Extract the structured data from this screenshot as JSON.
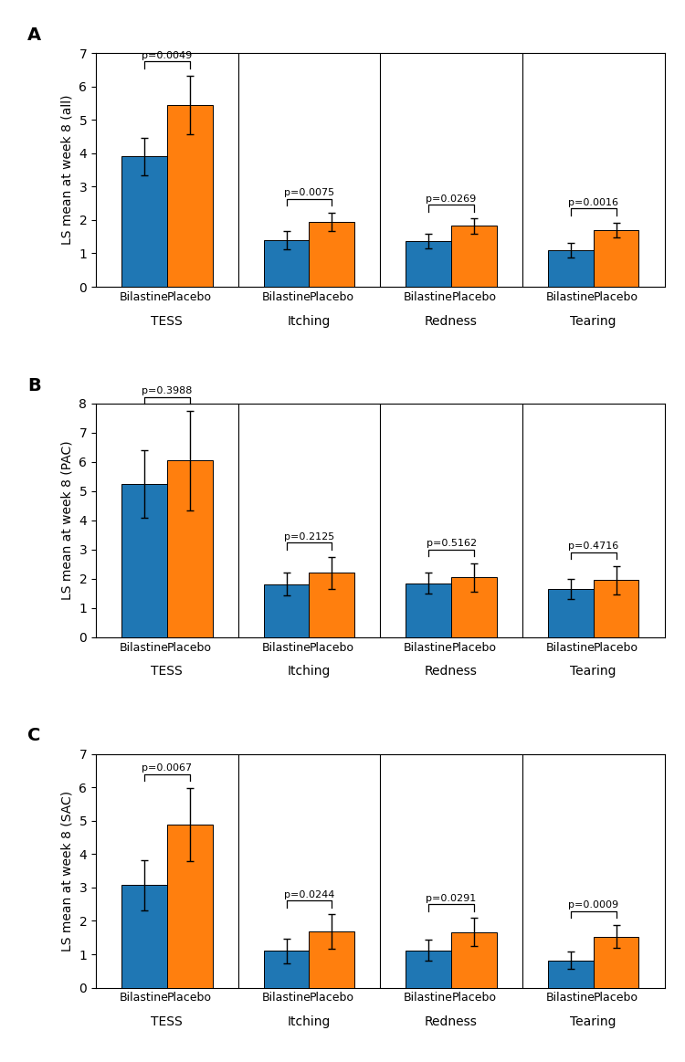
{
  "chart_data": [
    {
      "type": "bar",
      "title": "A",
      "y_label": "LS mean at week 8 (all)",
      "categories": [
        "TESS",
        "Itching",
        "Redness",
        "Tearing"
      ],
      "series": [
        {
          "name": "Bilastine",
          "values": [
            3.9,
            1.4,
            1.38,
            1.1
          ],
          "errors": [
            0.55,
            0.27,
            0.22,
            0.22
          ]
        },
        {
          "name": "Placebo",
          "values": [
            5.45,
            1.95,
            1.82,
            1.7
          ],
          "errors": [
            0.88,
            0.27,
            0.22,
            0.22
          ]
        }
      ],
      "annotations": [
        "p=0.0049",
        "p=0.0075",
        "p=0.0269",
        "p=0.0016"
      ],
      "ylim": [
        0,
        7
      ],
      "yticks": [
        0,
        1,
        2,
        3,
        4,
        5,
        6,
        7
      ]
    },
    {
      "type": "bar",
      "title": "B",
      "y_label": "LS mean at week 8 (PAC)",
      "categories": [
        "TESS",
        "Itching",
        "Redness",
        "Tearing"
      ],
      "series": [
        {
          "name": "Bilastine",
          "values": [
            5.25,
            1.82,
            1.85,
            1.65
          ],
          "errors": [
            1.15,
            0.4,
            0.35,
            0.35
          ]
        },
        {
          "name": "Placebo",
          "values": [
            6.05,
            2.2,
            2.05,
            1.95
          ],
          "errors": [
            1.7,
            0.55,
            0.48,
            0.48
          ]
        }
      ],
      "annotations": [
        "p=0.3988",
        "p=0.2125",
        "p=0.5162",
        "p=0.4716"
      ],
      "ylim": [
        0,
        8
      ],
      "yticks": [
        0,
        1,
        2,
        3,
        4,
        5,
        6,
        7,
        8
      ]
    },
    {
      "type": "bar",
      "title": "C",
      "y_label": "LS mean at week 8 (SAC)",
      "categories": [
        "TESS",
        "Itching",
        "Redness",
        "Tearing"
      ],
      "series": [
        {
          "name": "Bilastine",
          "values": [
            3.07,
            1.1,
            1.12,
            0.82
          ],
          "errors": [
            0.75,
            0.37,
            0.32,
            0.27
          ]
        },
        {
          "name": "Placebo",
          "values": [
            4.88,
            1.68,
            1.67,
            1.53
          ],
          "errors": [
            1.1,
            0.52,
            0.42,
            0.35
          ]
        }
      ],
      "annotations": [
        "p=0.0067",
        "p=0.0244",
        "p=0.0291",
        "p=0.0009"
      ],
      "ylim": [
        0,
        7
      ],
      "yticks": [
        0,
        1,
        2,
        3,
        4,
        5,
        6,
        7
      ]
    }
  ]
}
